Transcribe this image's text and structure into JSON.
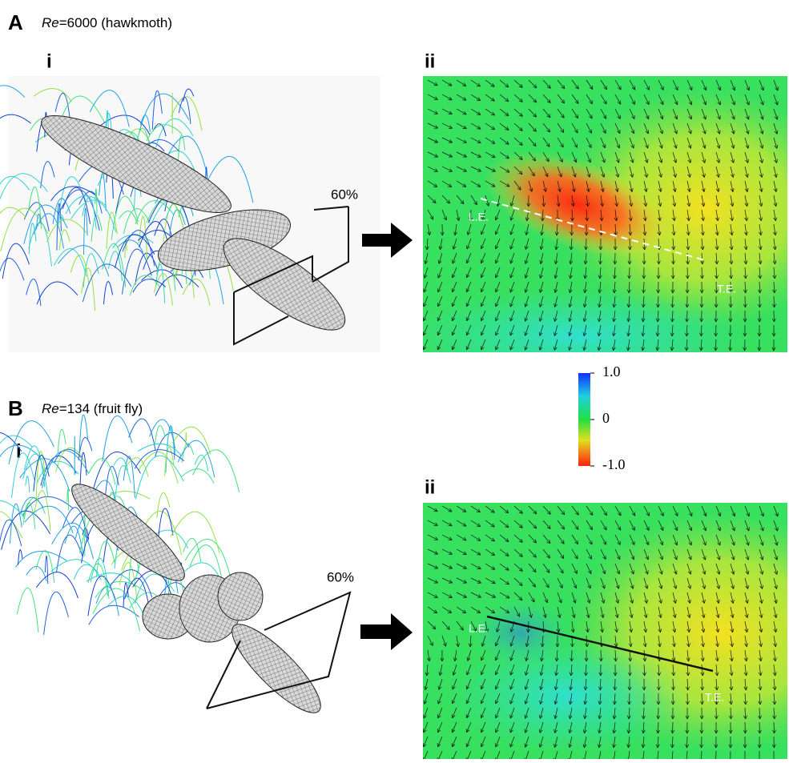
{
  "panels": [
    {
      "letter": "A",
      "re_symbol": "Re",
      "re_text": "=6000 (hawkmoth)",
      "left_label": "i",
      "right_label": "ii",
      "plane_label": "60%",
      "leading_edge": "L.E.",
      "trailing_edge": "T.E."
    },
    {
      "letter": "B",
      "re_symbol": "Re",
      "re_text": "=134 (fruit fly)",
      "left_label": "i",
      "right_label": "ii",
      "plane_label": "60%",
      "leading_edge": "L.E.",
      "trailing_edge": "T.E."
    }
  ],
  "colorbar": {
    "range": [
      -1,
      1
    ],
    "ticks": [
      {
        "value": 1,
        "label": "1.0"
      },
      0,
      {
        "value": -1,
        "label": "-1.0"
      }
    ]
  }
}
